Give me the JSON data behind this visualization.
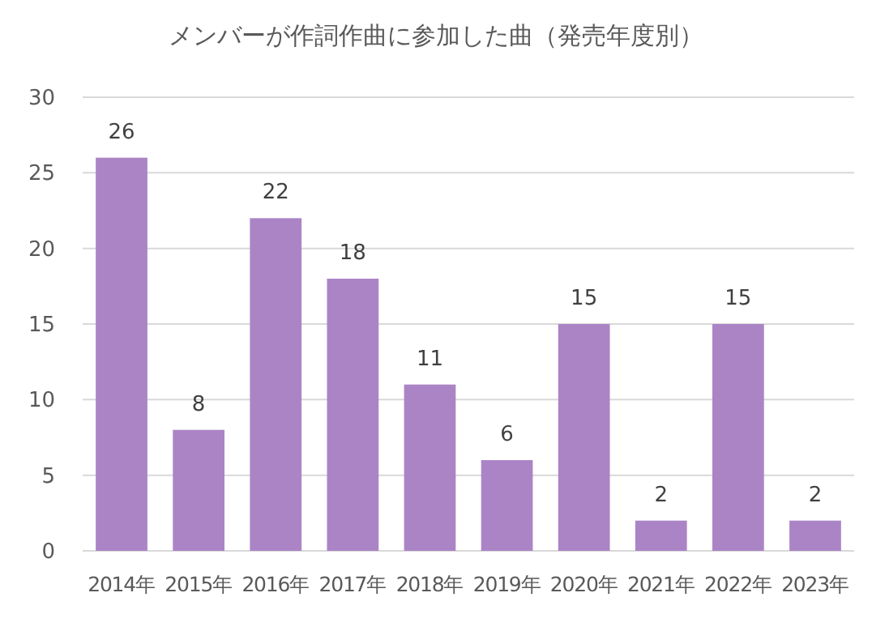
{
  "chart_data": {
    "type": "bar",
    "title": "メンバーが作詞作曲に参加した曲（発売年度別）",
    "categories": [
      "2014年",
      "2015年",
      "2016年",
      "2017年",
      "2018年",
      "2019年",
      "2020年",
      "2021年",
      "2022年",
      "2023年"
    ],
    "values": [
      26,
      8,
      22,
      18,
      11,
      6,
      15,
      2,
      15,
      2
    ],
    "color": "#ab84c6",
    "ylim": [
      0,
      30
    ],
    "yticks": [
      0,
      5,
      10,
      15,
      20,
      25,
      30
    ],
    "grid": "y",
    "data_labels": true
  }
}
